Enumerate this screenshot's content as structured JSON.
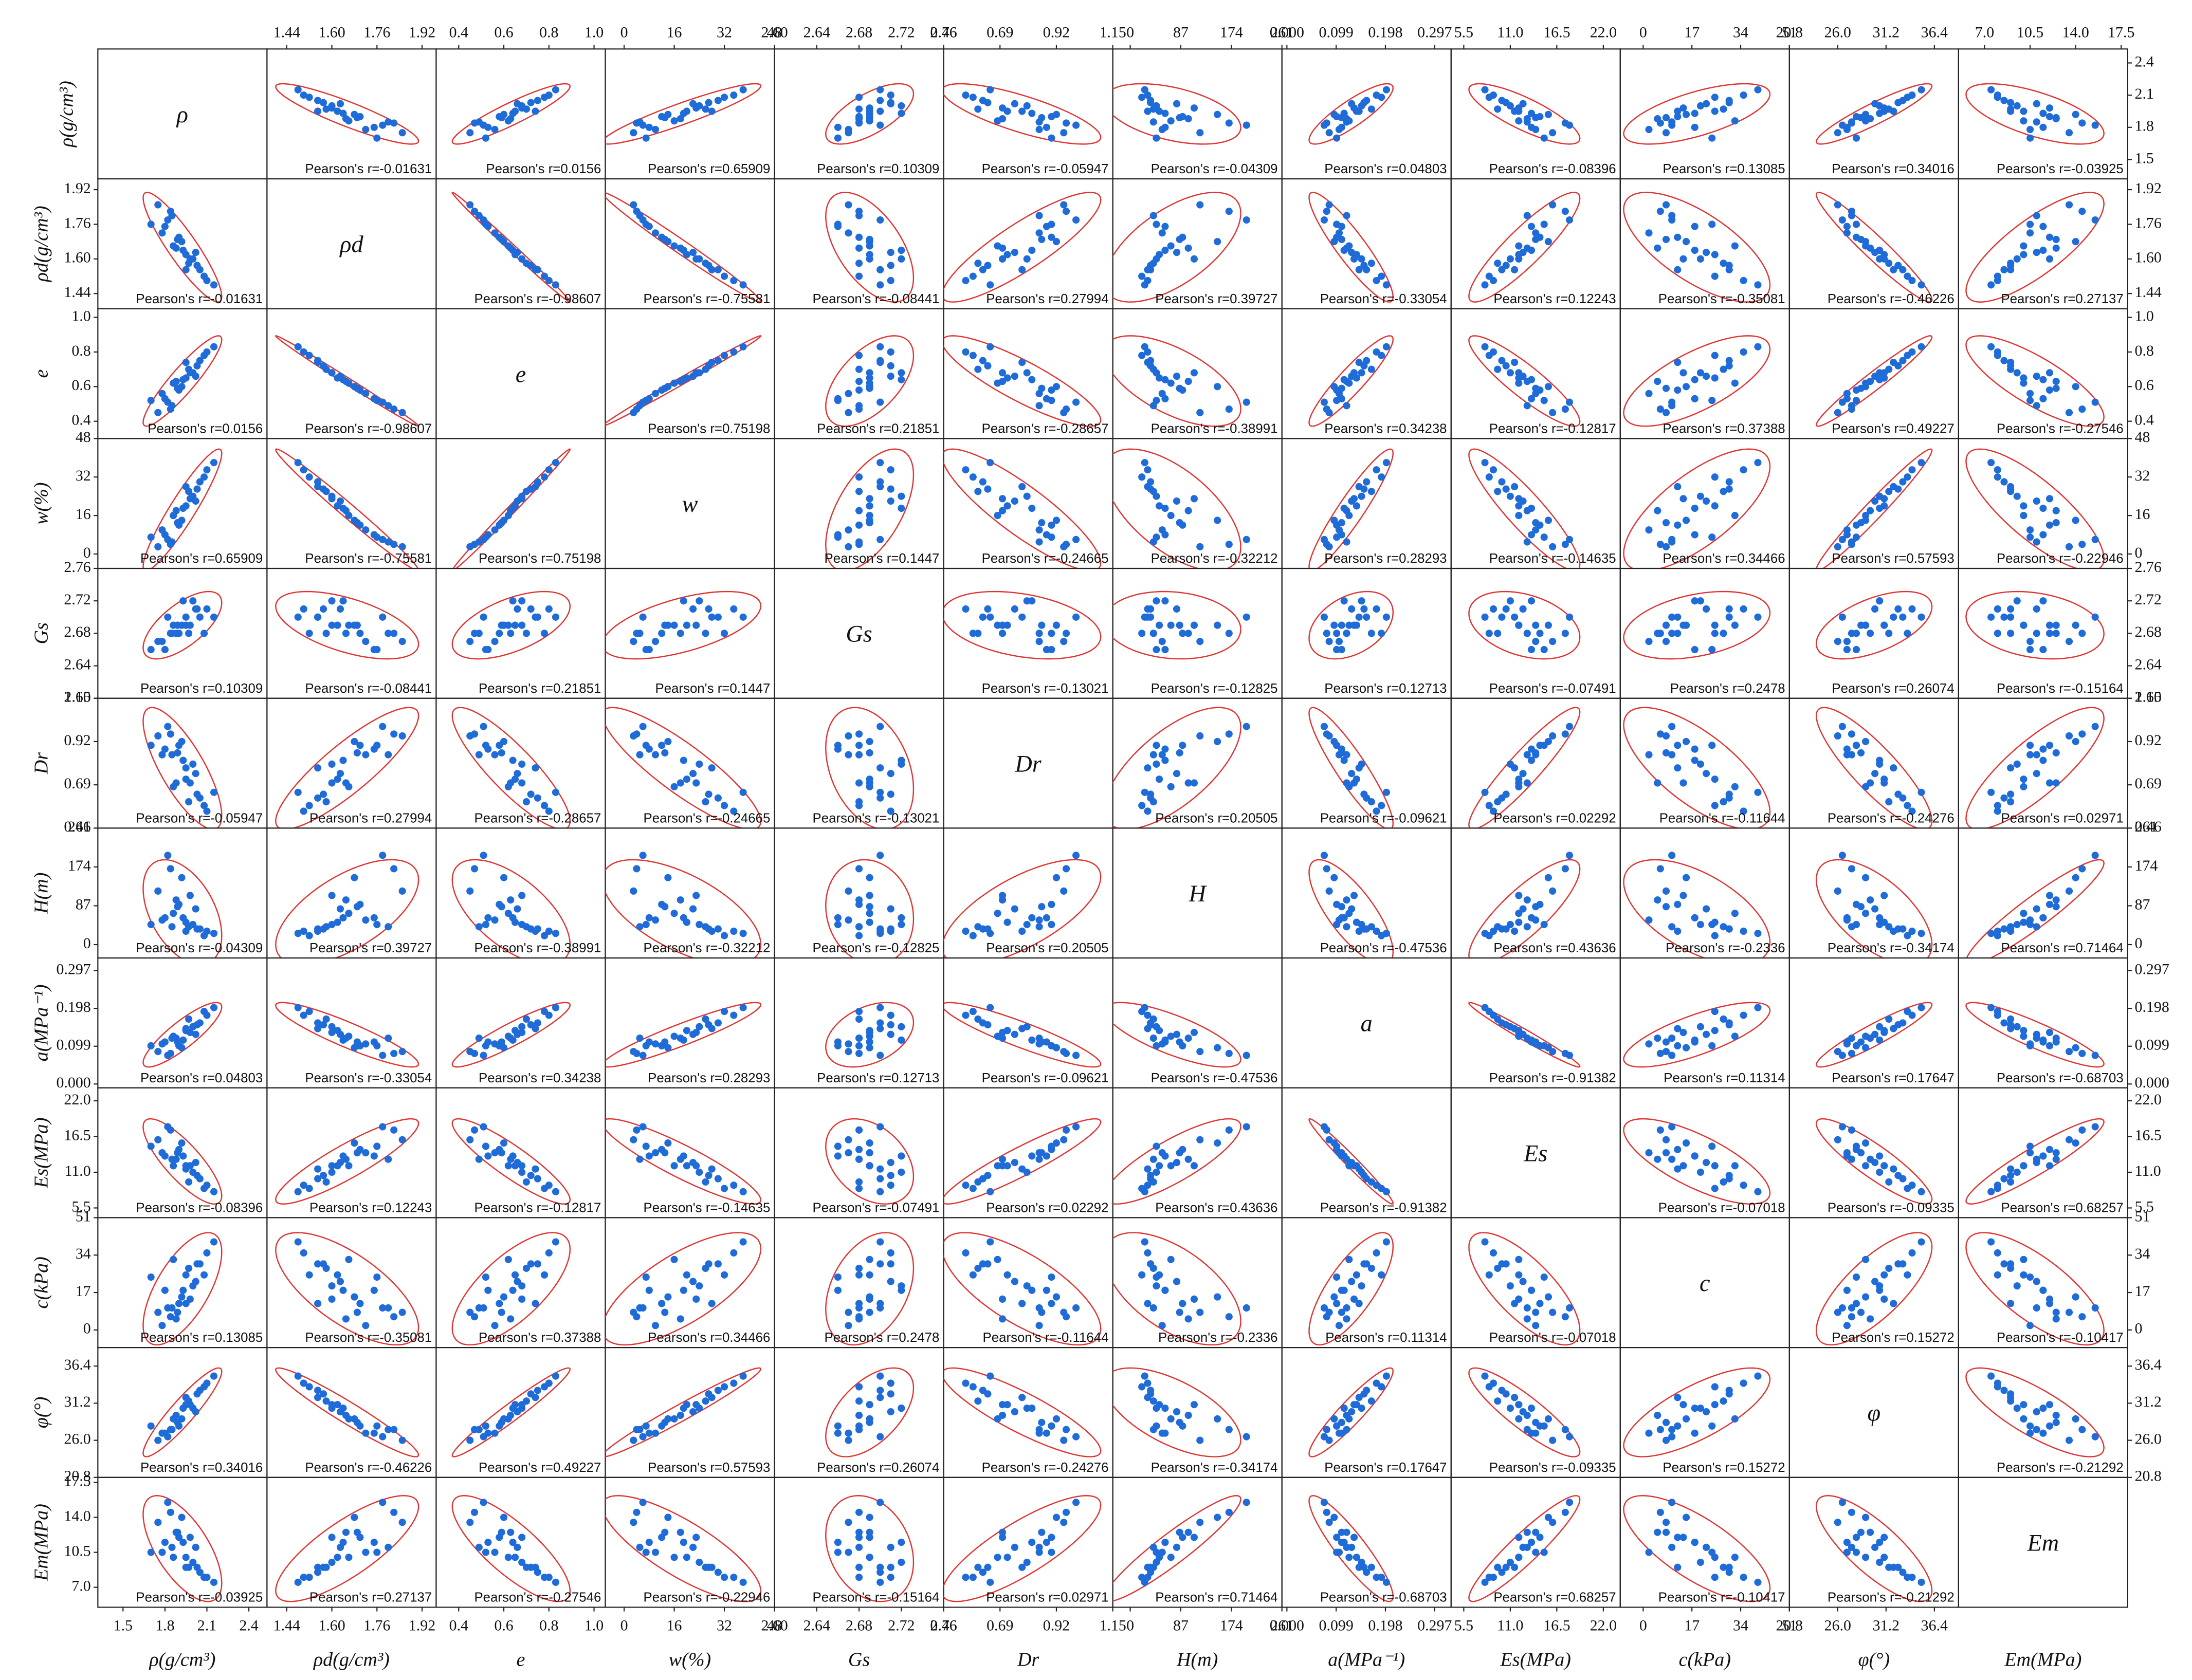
{
  "chart_data": {
    "type": "scatter_matrix",
    "point_color": "#1f6bd8",
    "ellipse_color": "#e03333",
    "pearson_color": "#d0352a",
    "variables": [
      {
        "name": "ρ",
        "axis_label": "ρ(g/cm³)",
        "lim": [
          1.32,
          2.53
        ],
        "ticks": [
          1.5,
          1.8,
          2.1,
          2.4
        ]
      },
      {
        "name": "ρd",
        "axis_label": "ρd(g/cm³)",
        "lim": [
          1.37,
          1.97
        ],
        "ticks": [
          {
            "value": 1.44,
            "label": "1.44"
          },
          {
            "value": 1.6,
            "label": "1.60"
          },
          {
            "value": 1.76,
            "label": "1.76"
          },
          {
            "value": 1.92,
            "label": "1.92"
          }
        ]
      },
      {
        "name": "e",
        "axis_label": "e",
        "lim": [
          0.3,
          1.05
        ],
        "ticks": [
          0.4,
          0.6,
          0.8,
          {
            "value": 1.0,
            "label": "1.0"
          }
        ]
      },
      {
        "name": "w",
        "axis_label": "w(%)",
        "lim": [
          -6,
          48
        ],
        "ticks": [
          0,
          16,
          32,
          48
        ]
      },
      {
        "name": "Gs",
        "axis_label": "Gs",
        "lim": [
          2.6,
          2.76
        ],
        "ticks": [
          {
            "value": 2.6,
            "label": "2.60"
          },
          2.64,
          2.68,
          2.72,
          2.76
        ]
      },
      {
        "name": "Dr",
        "axis_label": "Dr",
        "lim": [
          0.46,
          1.15
        ],
        "ticks": [
          0.46,
          0.69,
          0.92,
          1.15
        ]
      },
      {
        "name": "H",
        "axis_label": "H(m)",
        "lim": [
          -30,
          261
        ],
        "ticks": [
          0,
          87,
          174,
          261
        ]
      },
      {
        "name": "a",
        "axis_label": "a(MPa⁻¹)",
        "lim": [
          -0.01,
          0.33
        ],
        "ticks": [
          {
            "value": 0,
            "label": "0.000"
          },
          0.099,
          0.198,
          0.297
        ]
      },
      {
        "name": "Es",
        "axis_label": "Es(MPa)",
        "lim": [
          4,
          24
        ],
        "ticks": [
          5.5,
          {
            "value": 11,
            "label": "11.0"
          },
          16.5,
          {
            "value": 22,
            "label": "22.0"
          }
        ]
      },
      {
        "name": "c",
        "axis_label": "c(kPa)",
        "lim": [
          -8,
          51
        ],
        "ticks": [
          0,
          17,
          34,
          51
        ]
      },
      {
        "name": "φ",
        "axis_label": "φ(°)",
        "lim": [
          20.8,
          39
        ],
        "ticks": [
          20.8,
          {
            "value": 26,
            "label": "26.0"
          },
          31.2,
          36.4
        ]
      },
      {
        "name": "Em",
        "axis_label": "Em(MPa)",
        "lim": [
          5,
          18
        ],
        "ticks": [
          {
            "value": 7,
            "label": "7.0"
          },
          10.5,
          {
            "value": 14,
            "label": "14.0"
          },
          17.5
        ]
      }
    ],
    "observations": [
      [
        1.85,
        1.8,
        0.49,
        5,
        2.68,
        0.85,
        40,
        0.12,
        13.0,
        10,
        27.5,
        11.0
      ],
      [
        1.95,
        1.62,
        0.65,
        20,
        2.69,
        0.72,
        50,
        0.14,
        12.0,
        25,
        31.0,
        10.0
      ],
      [
        2.05,
        1.55,
        0.75,
        30,
        2.7,
        0.62,
        35,
        0.16,
        10.0,
        30,
        33.0,
        8.5
      ],
      [
        1.9,
        1.7,
        0.58,
        12,
        2.68,
        0.9,
        90,
        0.1,
        14.5,
        12,
        28.0,
        12.0
      ],
      [
        2.1,
        1.5,
        0.8,
        35,
        2.71,
        0.55,
        30,
        0.18,
        9.0,
        35,
        34.0,
        8.0
      ],
      [
        1.75,
        1.85,
        0.45,
        3,
        2.67,
        0.95,
        120,
        0.085,
        16.0,
        8,
        26.0,
        13.5
      ],
      [
        1.8,
        1.75,
        0.53,
        8,
        2.66,
        0.88,
        60,
        0.11,
        13.5,
        18,
        27.0,
        11.5
      ],
      [
        2.0,
        1.6,
        0.68,
        24,
        2.72,
        0.8,
        45,
        0.15,
        11.0,
        20,
        30.5,
        9.5
      ],
      [
        1.88,
        1.65,
        0.63,
        18,
        2.68,
        0.7,
        100,
        0.12,
        13.0,
        5,
        29.5,
        12.5
      ],
      [
        2.15,
        1.48,
        0.83,
        38,
        2.7,
        0.65,
        25,
        0.2,
        8.0,
        40,
        35.0,
        7.5
      ],
      [
        1.92,
        1.68,
        0.6,
        14,
        2.69,
        0.92,
        150,
        0.095,
        15.5,
        15,
        29.0,
        14.0
      ],
      [
        1.82,
        1.78,
        0.51,
        6,
        2.7,
        1.0,
        200,
        0.075,
        18.0,
        10,
        26.5,
        15.5
      ],
      [
        1.97,
        1.58,
        0.7,
        26,
        2.68,
        0.6,
        40,
        0.17,
        9.5,
        28,
        31.5,
        9.0
      ],
      [
        2.02,
        1.63,
        0.66,
        22,
        2.71,
        0.75,
        80,
        0.13,
        12.5,
        22,
        30.0,
        11.0
      ],
      [
        1.78,
        1.72,
        0.56,
        10,
        2.67,
        0.85,
        55,
        0.105,
        14.0,
        2,
        27.0,
        10.5
      ],
      [
        1.86,
        1.66,
        0.62,
        16,
        2.69,
        0.68,
        70,
        0.125,
        12.0,
        32,
        29.0,
        10.0
      ],
      [
        1.95,
        1.55,
        0.74,
        28,
        2.7,
        0.78,
        30,
        0.145,
        11.5,
        12,
        32.0,
        9.0
      ],
      [
        2.08,
        1.52,
        0.78,
        32,
        2.68,
        0.58,
        20,
        0.19,
        8.5,
        25,
        33.5,
        8.0
      ],
      [
        1.84,
        1.82,
        0.47,
        4,
        2.68,
        0.96,
        170,
        0.08,
        17.5,
        6,
        27.5,
        14.5
      ],
      [
        1.93,
        1.64,
        0.64,
        19,
        2.72,
        0.82,
        60,
        0.115,
        13.5,
        18,
        30.5,
        11.5
      ],
      [
        1.98,
        1.6,
        0.68,
        23,
        2.69,
        0.7,
        110,
        0.135,
        12.0,
        14,
        31.0,
        12.0
      ],
      [
        1.7,
        1.76,
        0.52,
        7,
        2.66,
        0.9,
        45,
        0.1,
        15.0,
        24,
        28.0,
        10.5
      ],
      [
        2.03,
        1.57,
        0.72,
        27,
        2.71,
        0.64,
        35,
        0.155,
        10.5,
        30,
        32.5,
        9.0
      ],
      [
        1.89,
        1.69,
        0.59,
        13,
        2.69,
        0.86,
        85,
        0.11,
        14.0,
        8,
        28.5,
        12.5
      ]
    ],
    "pearson_labels": [
      "Pearson's r=-0.01631",
      "Pearson's r=0.0156",
      "Pearson's r=0.65909",
      "Pearson's r=0.10309",
      "Pearson's r=-0.05947",
      "Pearson's r=-0.04309",
      "Pearson's r=0.04803",
      "Pearson's r=-0.08396",
      "Pearson's r=0.13085",
      "Pearson's r=0.34016",
      "Pearson's r=-0.03925",
      "Pearson's r=-0.98607",
      "Pearson's r=-0.75581",
      "Pearson's r=-0.08441",
      "Pearson's r=0.27994",
      "Pearson's r=0.39727",
      "Pearson's r=-0.33054",
      "Pearson's r=0.12243",
      "Pearson's r=-0.35081",
      "Pearson's r=-0.46226",
      "Pearson's r=0.27137",
      "Pearson's r=0.75198",
      "Pearson's r=0.21851",
      "Pearson's r=-0.28657",
      "Pearson's r=-0.38991",
      "Pearson's r=0.34238",
      "Pearson's r=-0.12817",
      "Pearson's r=0.37388",
      "Pearson's r=0.49227",
      "Pearson's r=-0.27546",
      "Pearson's r=0.1447",
      "Pearson's r=-0.24665",
      "Pearson's r=-0.32212",
      "Pearson's r=0.28293",
      "Pearson's r=-0.14635",
      "Pearson's r=0.34466",
      "Pearson's r=0.57593",
      "Pearson's r=-0.22946",
      "Pearson's r=-0.13021",
      "Pearson's r=-0.12825",
      "Pearson's r=0.12713",
      "Pearson's r=-0.07491",
      "Pearson's r=0.2478",
      "Pearson's r=0.26074",
      "Pearson's r=-0.15164",
      "Pearson's r=0.20505",
      "Pearson's r=-0.09621",
      "Pearson's r=0.02292",
      "Pearson's r=-0.11644",
      "Pearson's r=-0.24276",
      "Pearson's r=0.02971",
      "Pearson's r=-0.47536",
      "Pearson's r=0.43636",
      "Pearson's r=-0.2336",
      "Pearson's r=-0.34174",
      "Pearson's r=0.71464",
      "Pearson's r=-0.91382",
      "Pearson's r=0.11314",
      "Pearson's r=0.17647",
      "Pearson's r=-0.68703",
      "Pearson's r=-0.07018",
      "Pearson's r=-0.09335",
      "Pearson's r=0.68257",
      "Pearson's r=0.15272",
      "Pearson's r=-0.10417",
      "Pearson's r=-0.21292"
    ]
  }
}
